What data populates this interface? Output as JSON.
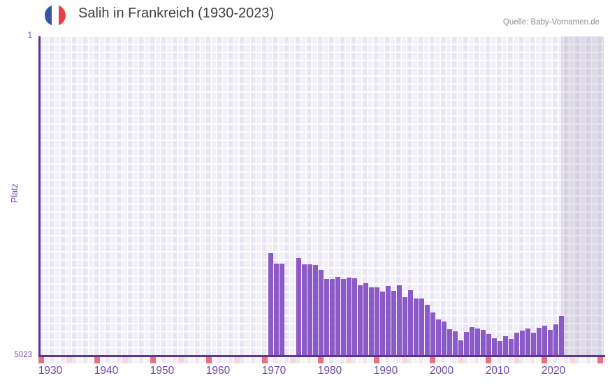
{
  "header": {
    "title": "Salih in Frankreich (1930-2023)",
    "source": "Quelle: Baby-Vornamen.de"
  },
  "axes": {
    "y_label": "Platz",
    "y_tick_top": "1",
    "y_tick_bottom": "5023",
    "x_tick_labels": [
      "1930",
      "1940",
      "1950",
      "1960",
      "1970",
      "1980",
      "1990",
      "2000",
      "2010",
      "2020"
    ]
  },
  "colors": {
    "bar": "#8c5ac7",
    "axis_line": "#5b3594",
    "tick_text": "#6f4aa5",
    "red_marker": "#e4737c",
    "pink_marker": "#f3d8e0",
    "grid_cell_dark": "#e9e5f2",
    "grid_cell_light": "#f2eff9",
    "flag_blue": "#3a53a4",
    "flag_red": "#e8404b"
  },
  "chart_data": {
    "type": "bar",
    "title": "Salih in Frankreich (1930-2023)",
    "xlabel": "",
    "ylabel": "Platz",
    "legend": "none",
    "grid": true,
    "y_axis": {
      "inverted": true,
      "top_value": 1,
      "bottom_value": 5023
    },
    "x_axis": {
      "range_start": 1929.6,
      "range_end": 2030.6,
      "tick_years": [
        1930,
        1940,
        1950,
        1960,
        1970,
        1980,
        1990,
        2000,
        2010,
        2020
      ]
    },
    "no_data_future_region": {
      "from_year": 2023.5,
      "to_year": 2030.6
    },
    "red_decade_marker_years": [
      1930,
      1940,
      1950,
      1960,
      1970,
      1980,
      1990,
      2000,
      2010,
      2020,
      2030
    ],
    "pink_half_decade_marker_years": [
      1935,
      1945,
      1955,
      1965,
      1975,
      1985,
      1995,
      2005,
      2015,
      2025
    ],
    "years": [
      1971,
      1972,
      1973,
      1976,
      1977,
      1978,
      1979,
      1980,
      1981,
      1982,
      1983,
      1984,
      1985,
      1986,
      1987,
      1988,
      1989,
      1990,
      1991,
      1992,
      1993,
      1994,
      1995,
      1996,
      1997,
      1998,
      1999,
      2000,
      2001,
      2002,
      2003,
      2004,
      2005,
      2006,
      2007,
      2008,
      2009,
      2010,
      2011,
      2012,
      2013,
      2014,
      2015,
      2016,
      2017,
      2018,
      2019,
      2020,
      2021,
      2022,
      2023
    ],
    "ranks": [
      3414,
      3578,
      3578,
      3488,
      3586,
      3586,
      3597,
      3674,
      3817,
      3817,
      3780,
      3817,
      3791,
      3806,
      3915,
      3883,
      3945,
      3945,
      4018,
      3926,
      4007,
      3919,
      4102,
      3992,
      4127,
      4127,
      4219,
      4343,
      4456,
      4486,
      4606,
      4642,
      4778,
      4650,
      4577,
      4595,
      4617,
      4683,
      4749,
      4796,
      4716,
      4763,
      4661,
      4633,
      4592,
      4658,
      4581,
      4548,
      4614,
      4526,
      4394
    ]
  }
}
